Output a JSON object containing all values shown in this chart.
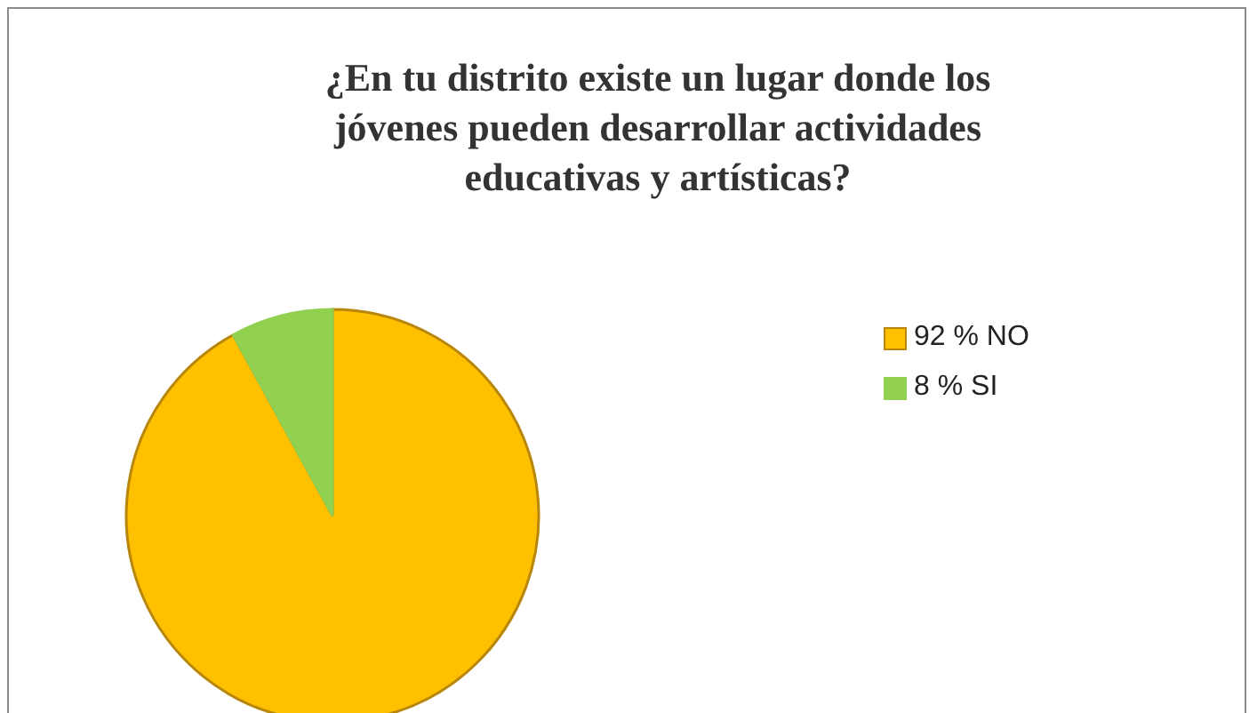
{
  "chart_data": {
    "type": "pie",
    "title": "¿En tu distrito existe un lugar donde los jóvenes pueden desarrollar actividades educativas y artísticas?",
    "categories": [
      "92 % NO",
      "8 % SI"
    ],
    "values": [
      92,
      8
    ],
    "colors": [
      "#ffc000",
      "#92d050"
    ],
    "legend": "right"
  }
}
